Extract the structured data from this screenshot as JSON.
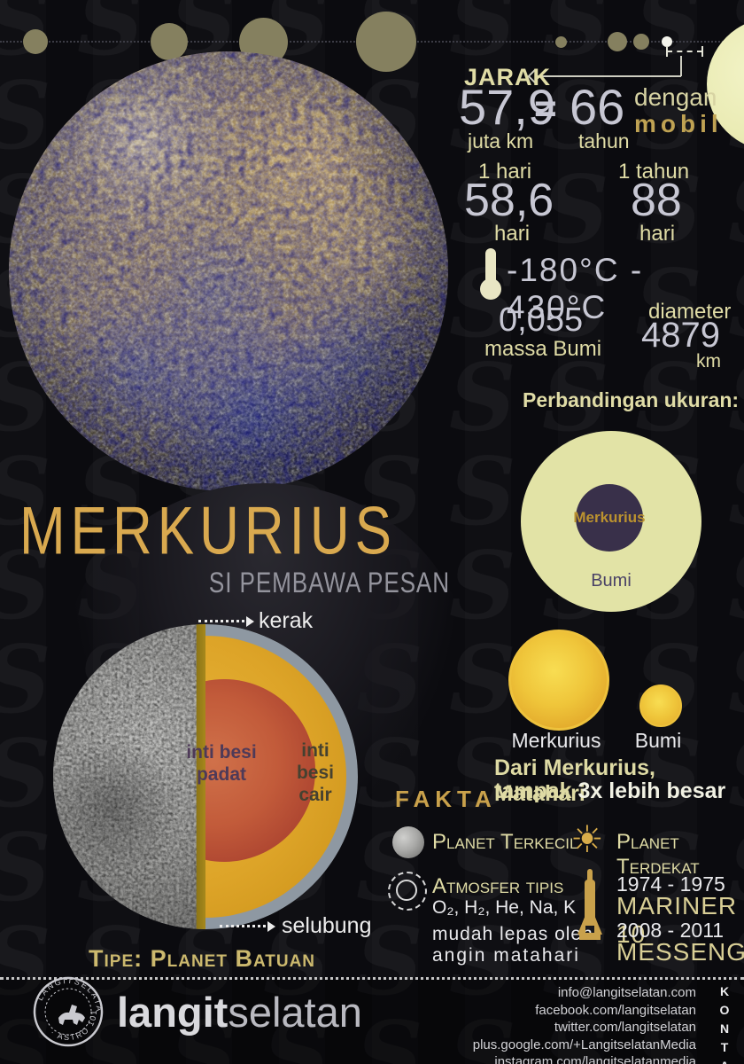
{
  "distance": {
    "label": "JARAK",
    "value": "57,9",
    "unit": "juta km",
    "equals": "=",
    "value2": "66",
    "unit2": "tahun",
    "by1": "dengan",
    "by2": "mobil"
  },
  "rotation": {
    "label": "1 hari",
    "value": "58,6",
    "unit": "hari"
  },
  "revolution": {
    "label": "1 tahun",
    "value": "88",
    "unit": "hari"
  },
  "temperature": {
    "range": "-180°C - 430°C"
  },
  "mass": {
    "value": "0,055",
    "label": "massa Bumi"
  },
  "diameter": {
    "label": "diameter",
    "value": "4879",
    "unit": "km"
  },
  "size_comparison": {
    "heading": "Perbandingan ukuran:",
    "inner_label": "Merkurius",
    "outer_label": "Bumi"
  },
  "title": {
    "name": "MERKURIUS",
    "subtitle": "SI PEMBAWA PESAN"
  },
  "interior": {
    "crust": "kerak",
    "mantle": "selubung",
    "inner_core": "inti besi padat",
    "outer_core": "inti besi cair",
    "type": "Tipe: Planet Batuan"
  },
  "sun_view": {
    "mercury_label": "Merkurius",
    "earth_label": "Bumi",
    "caption_line1": "Dari Merkurius, Matahari",
    "caption_line2_normal": "tampak ",
    "caption_line2_bold": "3x lebih besar"
  },
  "facts": {
    "heading": "FAKTA",
    "smallest": "Planet Terkecil",
    "atmosphere_title": "Atmosfer tipis",
    "atmosphere_gases": "O₂, H₂, He, Na, K",
    "atmosphere_note1": "mudah lepas oleh",
    "atmosphere_note2": "angin matahari",
    "closest": "Planet Terdekat",
    "sun_icon_glyph": "☀",
    "missions": [
      {
        "years": "1974 - 1975",
        "name": "MARINER 10"
      },
      {
        "years": "2008 - 2011",
        "name": "MESSENGER"
      }
    ]
  },
  "footer": {
    "brand_bold": "langit",
    "brand_light": "selatan",
    "stamp_text_top": "LANGITSELATAN",
    "stamp_text_bottom": "· ASTRO 101 ·",
    "contacts": [
      "info@langitselatan.com",
      "facebook.com/langitselatan",
      "twitter.com/langitselatan",
      "plus.google.com/+LangitselatanMedia",
      "instagram.com/langitselatanmedia"
    ],
    "kontak": "KONTAK"
  }
}
